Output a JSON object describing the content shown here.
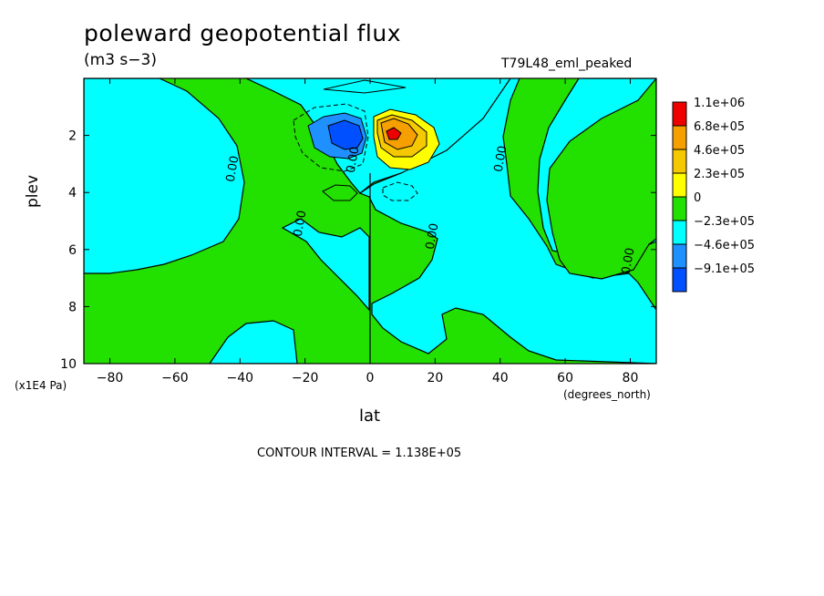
{
  "chart_data": {
    "type": "contour",
    "title": "poleward geopotential flux",
    "units": "(m3 s−3)",
    "run_label": "T79L48_eml_peaked",
    "xlabel": "lat",
    "xunits": "(degrees_north)",
    "ylabel": "plev",
    "yunits": "(x1E4 Pa)",
    "xlim": [
      -88,
      88
    ],
    "ylim": [
      10,
      0
    ],
    "xticks": [
      -80,
      -60,
      -40,
      -20,
      0,
      20,
      40,
      60,
      80
    ],
    "yticks": [
      2,
      4,
      6,
      8,
      10
    ],
    "contour_interval_text": "CONTOUR INTERVAL = 1.138E+05",
    "contour_labels": [
      "0.00",
      "0.00",
      "0.00",
      "0.00",
      "0.00",
      "0.00"
    ],
    "legend": {
      "placement": "right",
      "levels": [
        {
          "label": "1.1e+06",
          "color": "#ee0000"
        },
        {
          "label": "6.8e+05",
          "color": "#f5a000"
        },
        {
          "label": "4.6e+05",
          "color": "#f5c800"
        },
        {
          "label": "2.3e+05",
          "color": "#ffff00"
        },
        {
          "label": "0",
          "color": "#22e000"
        },
        {
          "label": "−2.3e+05",
          "color": "#00ffff"
        },
        {
          "label": "−4.6e+05",
          "color": "#1e90ff"
        },
        {
          "label": "−9.1e+05",
          "color": "#0050ff"
        }
      ]
    },
    "features": [
      {
        "kind": "max",
        "lat": 6,
        "plev": 2.0,
        "level": "1.1e+06"
      },
      {
        "kind": "min",
        "lat": -8,
        "plev": 2.1,
        "level": "−9.1e+05"
      }
    ]
  }
}
